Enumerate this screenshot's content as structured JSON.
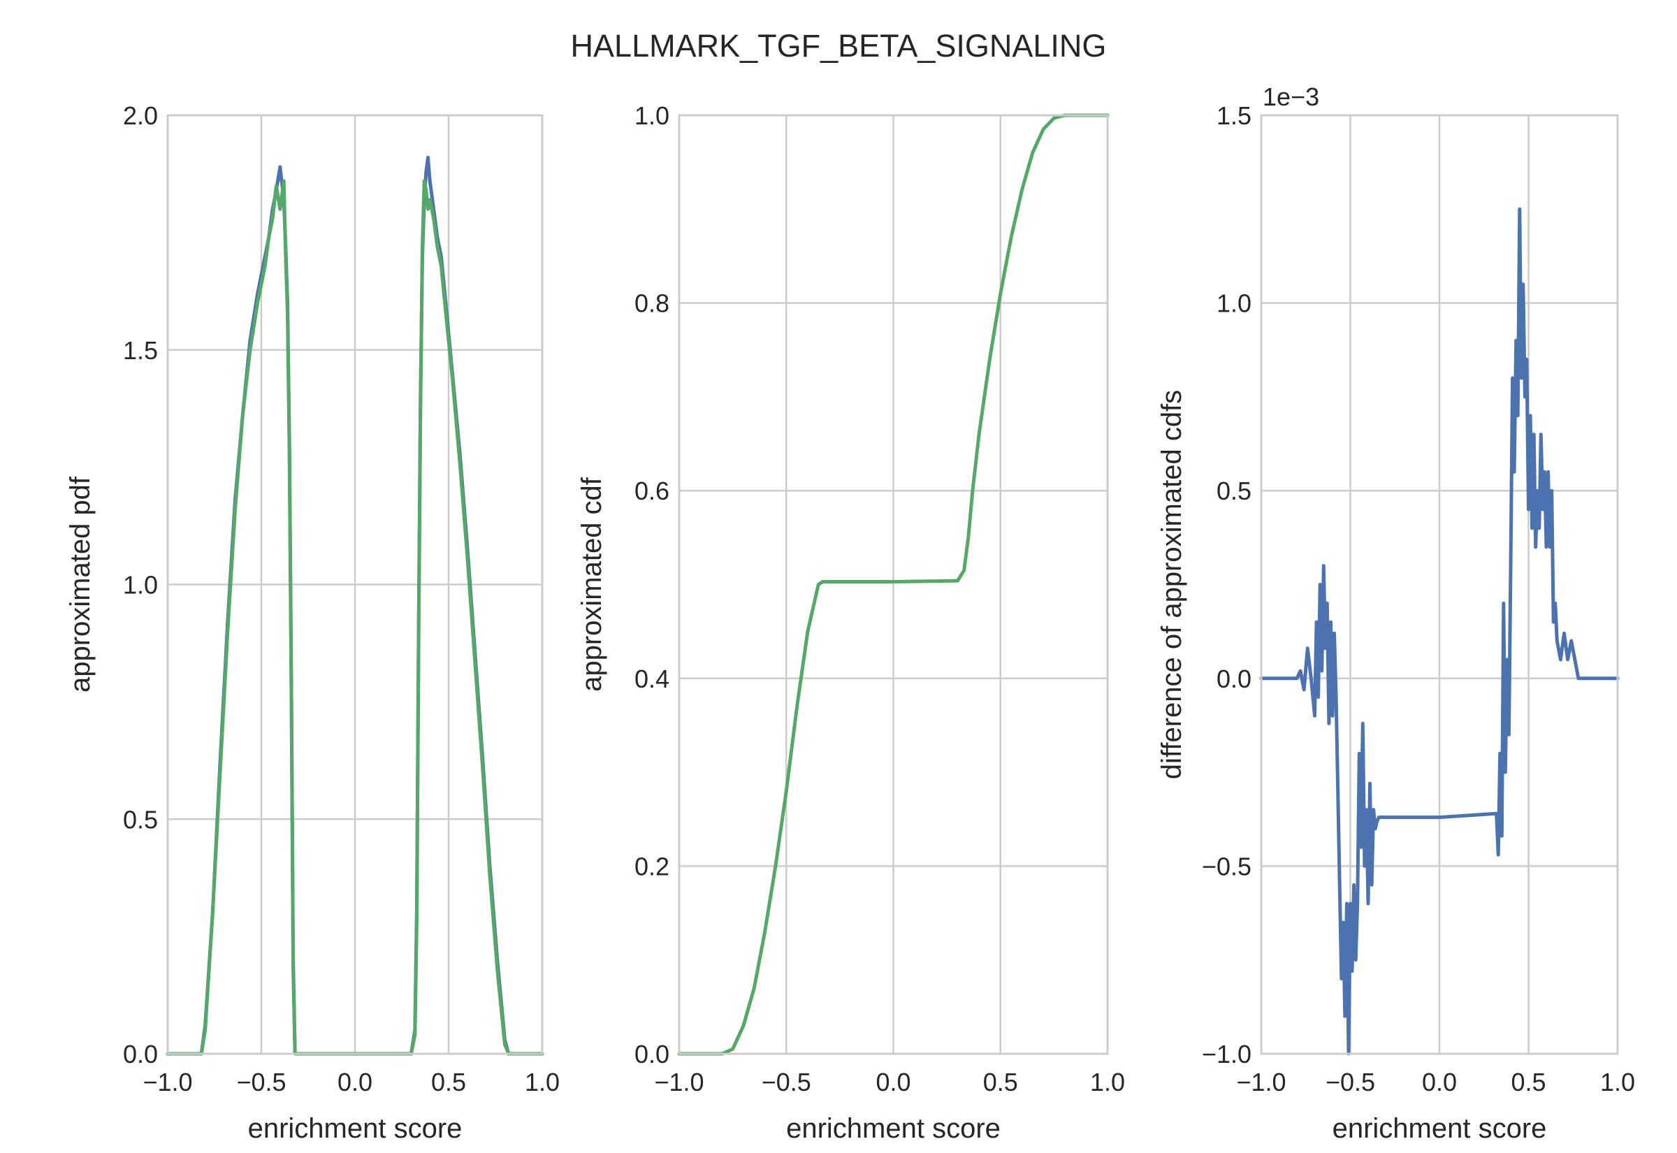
{
  "title": "HALLMARK_TGF_BETA_SIGNALING",
  "colors": {
    "series_blue": "#4c72b0",
    "series_green": "#55a868",
    "grid": "#cccccc",
    "frame": "#cccccc",
    "text": "#262626"
  },
  "chart_data": [
    {
      "type": "line",
      "xlabel": "enrichment score",
      "ylabel": "approximated pdf",
      "xlim": [
        -1.0,
        1.0
      ],
      "ylim": [
        0.0,
        2.0
      ],
      "xticks": [
        "−1.0",
        "−0.5",
        "0.0",
        "0.5",
        "1.0"
      ],
      "yticks": [
        "0.0",
        "0.5",
        "1.0",
        "1.5",
        "2.0"
      ],
      "grid": true,
      "series": [
        {
          "color": "#4c72b0",
          "x": [
            -1.0,
            -0.9,
            -0.82,
            -0.8,
            -0.76,
            -0.72,
            -0.68,
            -0.64,
            -0.6,
            -0.56,
            -0.52,
            -0.48,
            -0.46,
            -0.44,
            -0.42,
            -0.4,
            -0.38,
            -0.37,
            -0.36,
            -0.35,
            -0.34,
            -0.33,
            -0.32,
            -0.3,
            0.0,
            0.3,
            0.32,
            0.33,
            0.34,
            0.35,
            0.36,
            0.37,
            0.38,
            0.39,
            0.4,
            0.42,
            0.44,
            0.46,
            0.48,
            0.52,
            0.56,
            0.6,
            0.64,
            0.68,
            0.72,
            0.76,
            0.8,
            0.82,
            0.9,
            1.0
          ],
          "y": [
            0.0,
            0.0,
            0.0,
            0.06,
            0.3,
            0.62,
            0.92,
            1.18,
            1.36,
            1.52,
            1.62,
            1.7,
            1.74,
            1.8,
            1.84,
            1.89,
            1.82,
            1.72,
            1.6,
            1.3,
            0.8,
            0.2,
            0.0,
            0.0,
            0.0,
            0.0,
            0.05,
            0.3,
            0.9,
            1.4,
            1.7,
            1.82,
            1.88,
            1.91,
            1.86,
            1.8,
            1.74,
            1.7,
            1.62,
            1.45,
            1.28,
            1.08,
            0.86,
            0.64,
            0.4,
            0.2,
            0.03,
            0.0,
            0.0,
            0.0
          ]
        },
        {
          "color": "#55a868",
          "x": [
            -1.0,
            -0.9,
            -0.82,
            -0.8,
            -0.76,
            -0.72,
            -0.68,
            -0.64,
            -0.6,
            -0.56,
            -0.52,
            -0.48,
            -0.46,
            -0.44,
            -0.42,
            -0.4,
            -0.38,
            -0.37,
            -0.36,
            -0.35,
            -0.34,
            -0.33,
            -0.32,
            -0.3,
            0.0,
            0.3,
            0.32,
            0.33,
            0.34,
            0.35,
            0.36,
            0.37,
            0.38,
            0.39,
            0.4,
            0.42,
            0.44,
            0.46,
            0.48,
            0.52,
            0.56,
            0.6,
            0.64,
            0.68,
            0.72,
            0.76,
            0.8,
            0.82,
            0.9,
            1.0
          ],
          "y": [
            0.0,
            0.0,
            0.0,
            0.05,
            0.3,
            0.6,
            0.9,
            1.16,
            1.36,
            1.5,
            1.6,
            1.68,
            1.74,
            1.78,
            1.85,
            1.8,
            1.86,
            1.7,
            1.58,
            1.28,
            0.78,
            0.18,
            0.0,
            0.0,
            0.0,
            0.0,
            0.04,
            0.28,
            0.88,
            1.38,
            1.72,
            1.86,
            1.84,
            1.8,
            1.82,
            1.78,
            1.72,
            1.68,
            1.6,
            1.44,
            1.26,
            1.06,
            0.84,
            0.62,
            0.38,
            0.18,
            0.02,
            0.0,
            0.0,
            0.0
          ]
        }
      ]
    },
    {
      "type": "line",
      "xlabel": "enrichment score",
      "ylabel": "approximated cdf",
      "xlim": [
        -1.0,
        1.0
      ],
      "ylim": [
        0.0,
        1.0
      ],
      "xticks": [
        "−1.0",
        "−0.5",
        "0.0",
        "0.5",
        "1.0"
      ],
      "yticks": [
        "0.0",
        "0.2",
        "0.4",
        "0.6",
        "0.8",
        "1.0"
      ],
      "grid": true,
      "series": [
        {
          "color": "#55a868",
          "x": [
            -1.0,
            -0.8,
            -0.75,
            -0.7,
            -0.65,
            -0.6,
            -0.55,
            -0.5,
            -0.45,
            -0.4,
            -0.37,
            -0.35,
            -0.33,
            -0.3,
            0.0,
            0.3,
            0.33,
            0.35,
            0.37,
            0.4,
            0.45,
            0.5,
            0.55,
            0.6,
            0.65,
            0.7,
            0.75,
            0.8,
            1.0
          ],
          "y": [
            0.0,
            0.0,
            0.005,
            0.03,
            0.07,
            0.13,
            0.2,
            0.28,
            0.37,
            0.45,
            0.48,
            0.5,
            0.503,
            0.503,
            0.503,
            0.504,
            0.515,
            0.55,
            0.6,
            0.66,
            0.74,
            0.81,
            0.87,
            0.92,
            0.96,
            0.985,
            0.997,
            1.0,
            1.0
          ]
        }
      ]
    },
    {
      "type": "line",
      "xlabel": "enrichment score",
      "ylabel": "difference of approximated cdfs",
      "offset_text": "1e−3",
      "xlim": [
        -1.0,
        1.0
      ],
      "ylim": [
        -1.0,
        1.5
      ],
      "xticks": [
        "−1.0",
        "−0.5",
        "0.0",
        "0.5",
        "1.0"
      ],
      "yticks": [
        "−1.0",
        "−0.5",
        "0.0",
        "0.5",
        "1.0",
        "1.5"
      ],
      "grid": true,
      "series": [
        {
          "color": "#4c72b0",
          "x": [
            -1.0,
            -0.8,
            -0.78,
            -0.76,
            -0.74,
            -0.72,
            -0.7,
            -0.69,
            -0.68,
            -0.67,
            -0.66,
            -0.65,
            -0.64,
            -0.63,
            -0.62,
            -0.61,
            -0.6,
            -0.59,
            -0.58,
            -0.57,
            -0.56,
            -0.55,
            -0.54,
            -0.53,
            -0.52,
            -0.51,
            -0.5,
            -0.49,
            -0.48,
            -0.47,
            -0.46,
            -0.45,
            -0.44,
            -0.43,
            -0.42,
            -0.41,
            -0.4,
            -0.39,
            -0.38,
            -0.37,
            -0.36,
            -0.35,
            -0.34,
            -0.33,
            -0.3,
            0.0,
            0.32,
            0.33,
            0.34,
            0.35,
            0.36,
            0.37,
            0.38,
            0.39,
            0.4,
            0.41,
            0.42,
            0.43,
            0.44,
            0.45,
            0.46,
            0.47,
            0.48,
            0.49,
            0.5,
            0.51,
            0.52,
            0.53,
            0.54,
            0.55,
            0.56,
            0.57,
            0.58,
            0.59,
            0.6,
            0.61,
            0.62,
            0.63,
            0.64,
            0.65,
            0.66,
            0.68,
            0.7,
            0.72,
            0.74,
            0.76,
            0.78,
            0.8,
            0.82,
            1.0
          ],
          "y": [
            0.0,
            0.0,
            0.02,
            -0.03,
            0.08,
            0.0,
            -0.1,
            0.15,
            -0.05,
            0.25,
            0.02,
            0.3,
            0.08,
            0.2,
            -0.12,
            0.15,
            -0.1,
            0.12,
            -0.05,
            -0.3,
            -0.55,
            -0.8,
            -0.65,
            -0.9,
            -0.6,
            -1.0,
            -0.6,
            -0.78,
            -0.55,
            -0.75,
            -0.6,
            -0.2,
            -0.45,
            -0.12,
            -0.5,
            -0.35,
            -0.6,
            -0.28,
            -0.55,
            -0.35,
            -0.4,
            -0.38,
            -0.37,
            -0.37,
            -0.37,
            -0.37,
            -0.36,
            -0.47,
            -0.2,
            -0.42,
            0.2,
            -0.25,
            0.05,
            -0.15,
            0.3,
            0.8,
            0.55,
            0.9,
            0.7,
            1.25,
            0.8,
            1.05,
            0.75,
            0.85,
            0.45,
            0.7,
            0.4,
            0.65,
            0.35,
            0.5,
            0.4,
            0.65,
            0.45,
            0.55,
            0.35,
            0.55,
            0.35,
            0.5,
            0.15,
            0.2,
            0.1,
            0.05,
            0.12,
            0.05,
            0.1,
            0.05,
            0.0,
            0.0,
            0.0,
            0.0
          ]
        }
      ]
    }
  ]
}
